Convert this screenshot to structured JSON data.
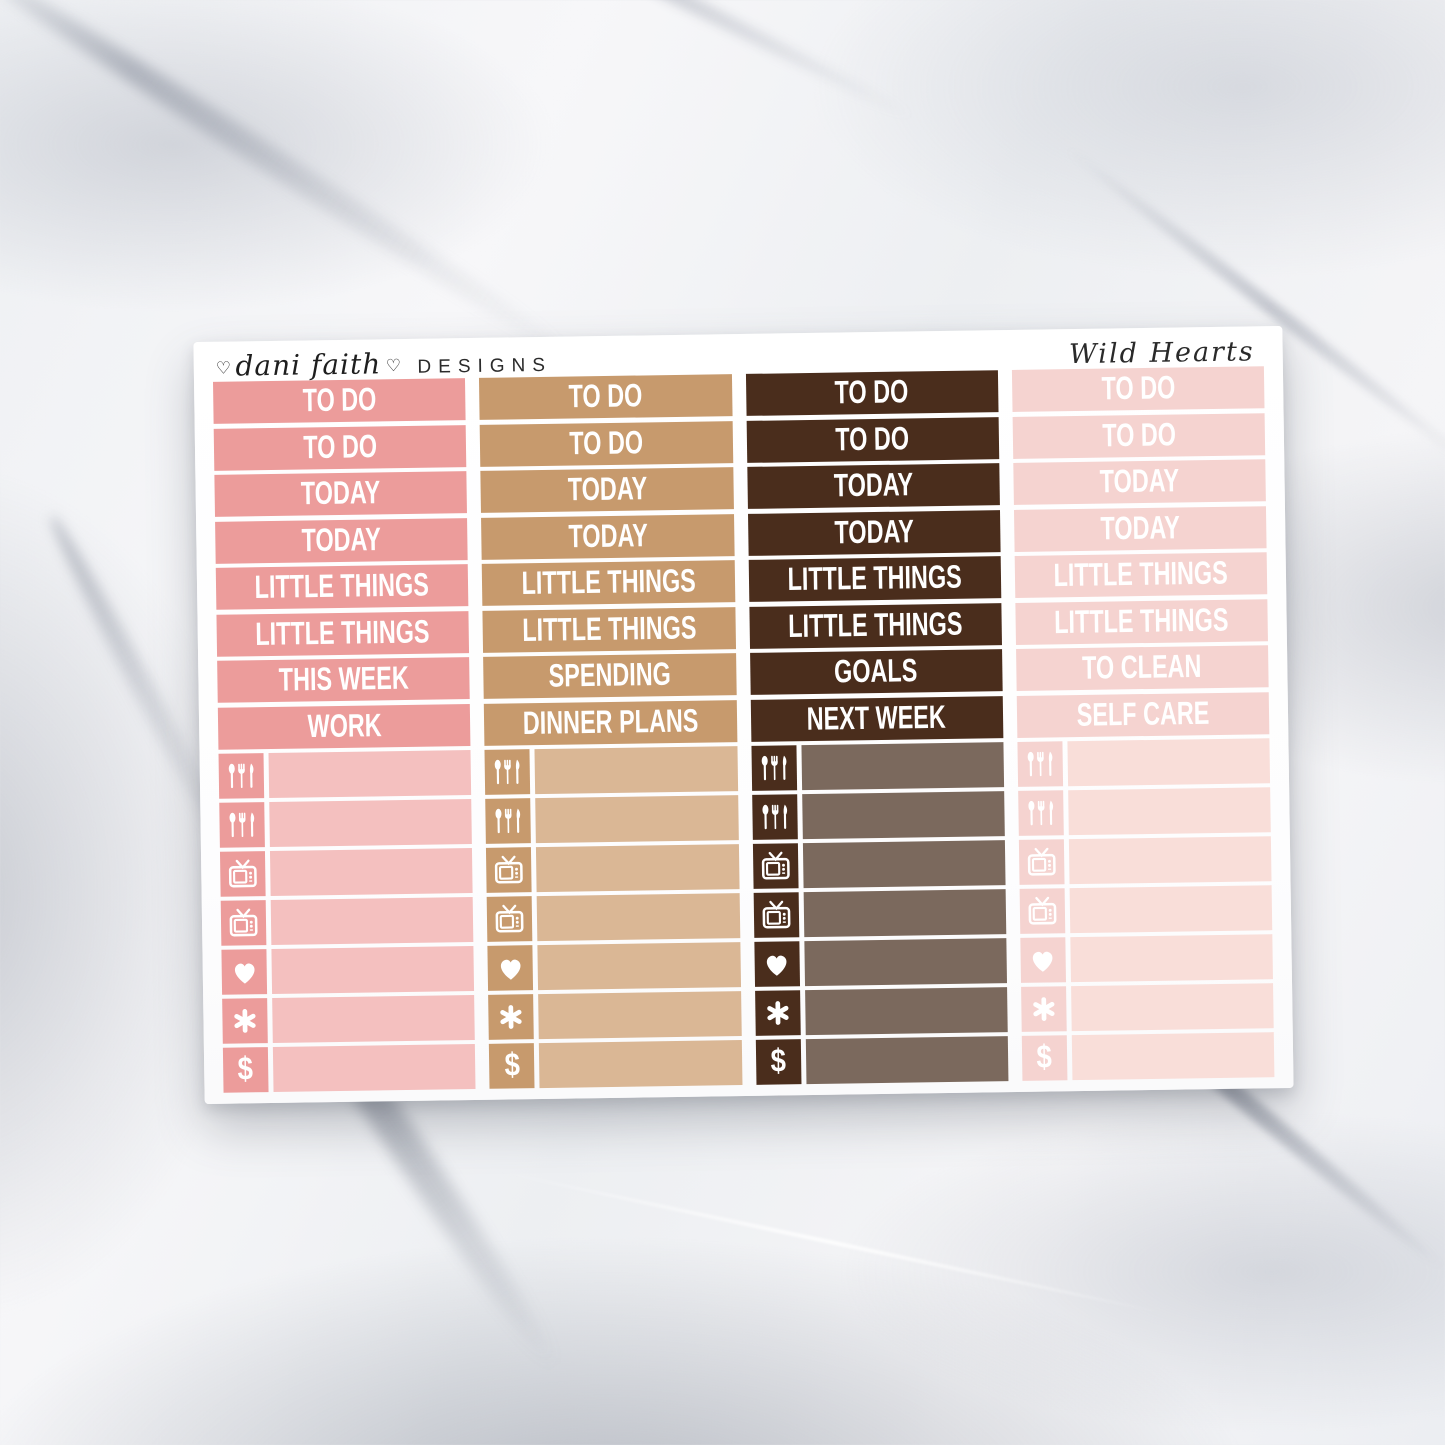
{
  "collection_title": "Wild Hearts",
  "brand": {
    "heart": "♡",
    "script": "dani faith",
    "suffix": "DESIGNS"
  },
  "icons": {
    "dollar_glyph": "$"
  },
  "sheet": {
    "background": "#ffffff",
    "columns": [
      {
        "name": "rose",
        "header_color": "#ec9c9b",
        "bar_color": "#f4c0bf",
        "text_color": "#ffffff",
        "headers": [
          "TO DO",
          "TO DO",
          "TODAY",
          "TODAY",
          "LITTLE THINGS",
          "LITTLE THINGS",
          "THIS WEEK",
          "WORK"
        ],
        "icon_rows": [
          "utensils",
          "utensils",
          "tv",
          "tv",
          "heart",
          "asterisk",
          "dollar"
        ]
      },
      {
        "name": "tan",
        "header_color": "#c79a6d",
        "bar_color": "#dab795",
        "text_color": "#ffffff",
        "headers": [
          "TO DO",
          "TO DO",
          "TODAY",
          "TODAY",
          "LITTLE THINGS",
          "LITTLE THINGS",
          "SPENDING",
          "DINNER PLANS"
        ],
        "icon_rows": [
          "utensils",
          "utensils",
          "tv",
          "tv",
          "heart",
          "asterisk",
          "dollar"
        ]
      },
      {
        "name": "brown",
        "header_color": "#4a2d1c",
        "bar_color": "#7b695d",
        "text_color": "#ffffff",
        "headers": [
          "TO DO",
          "TO DO",
          "TODAY",
          "TODAY",
          "LITTLE THINGS",
          "LITTLE THINGS",
          "GOALS",
          "NEXT WEEK"
        ],
        "icon_rows": [
          "utensils",
          "utensils",
          "tv",
          "tv",
          "heart",
          "asterisk",
          "dollar"
        ]
      },
      {
        "name": "blush",
        "header_color": "#f5d3d0",
        "bar_color": "#f9ded9",
        "text_color": "#ffffff",
        "headers": [
          "TO DO",
          "TO DO",
          "TODAY",
          "TODAY",
          "LITTLE THINGS",
          "LITTLE THINGS",
          "TO CLEAN",
          "SELF CARE"
        ],
        "icon_rows": [
          "utensils",
          "utensils",
          "tv",
          "tv",
          "heart",
          "asterisk",
          "dollar"
        ]
      }
    ]
  }
}
